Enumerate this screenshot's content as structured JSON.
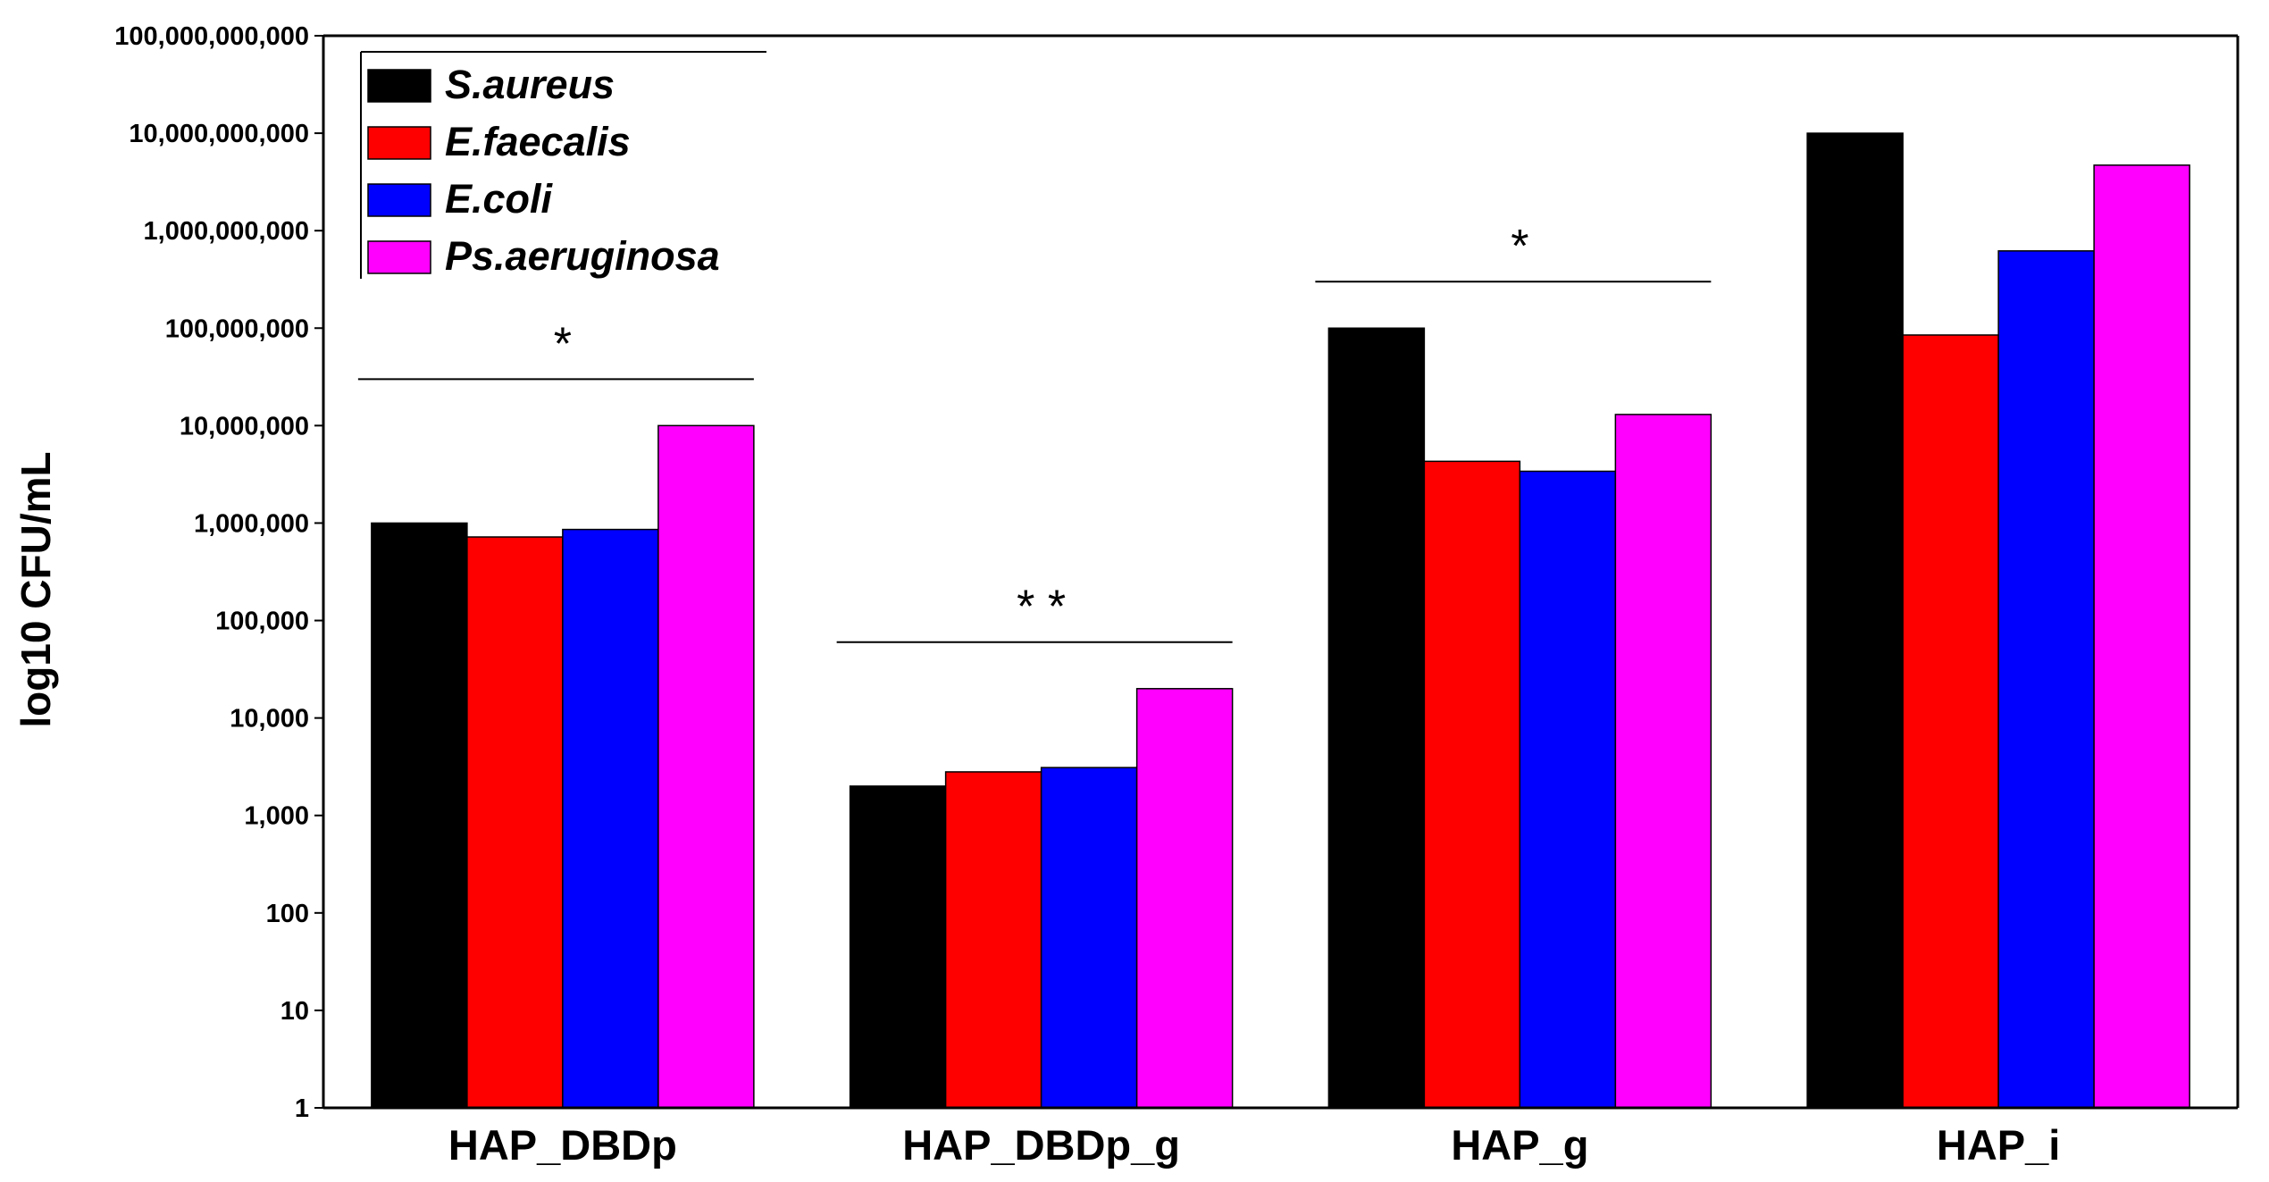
{
  "chart_data": {
    "type": "bar",
    "title": "",
    "xlabel": "",
    "ylabel": "log10 CFU/mL",
    "yscale": "log",
    "ylim": [
      1,
      100000000000
    ],
    "y_tick_values": [
      1,
      10,
      100,
      1000,
      10000,
      100000,
      1000000,
      10000000,
      100000000,
      1000000000,
      10000000000,
      100000000000
    ],
    "y_tick_labels": [
      "1",
      "10",
      "100",
      "1,000",
      "10,000",
      "100,000",
      "1,000,000",
      "10,000,000",
      "100,000,000",
      "1,000,000,000",
      "10,000,000,000",
      "100,000,000,000"
    ],
    "categories": [
      "HAP_DBDp",
      "HAP_DBDp_g",
      "HAP_g",
      "HAP_i"
    ],
    "series": [
      {
        "name": "S.aureus",
        "color": "#000000",
        "values": [
          1000000,
          2000,
          100000000,
          10000000000
        ]
      },
      {
        "name": "E.faecalis",
        "color": "#ff0000",
        "values": [
          720000,
          2800,
          4300000,
          85000000
        ]
      },
      {
        "name": "E.coli",
        "color": "#0000ff",
        "values": [
          860000,
          3100,
          3400000,
          620000000
        ]
      },
      {
        "name": "Ps.aeruginosa",
        "color": "#ff00ff",
        "values": [
          10000000,
          20000,
          13000000,
          4700000000
        ]
      }
    ],
    "legend_position": "top-left",
    "annotations": [
      {
        "text": "*",
        "group": "HAP_DBDp",
        "line_at": 30000000
      },
      {
        "text": "* *",
        "group": "HAP_DBDp_g",
        "line_at": 60000
      },
      {
        "text": "*",
        "group": "HAP_g",
        "line_at": 300000000
      }
    ]
  }
}
